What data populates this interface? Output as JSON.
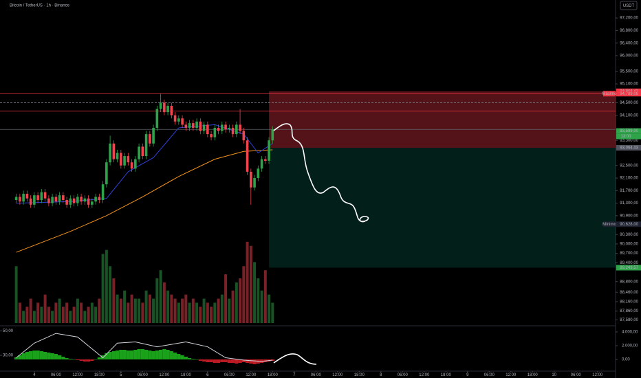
{
  "chart_data": {
    "type": "candlestick",
    "title": "Bitcoin / TetherUS · 1h · Binance",
    "currency": "USDT",
    "colors": {
      "up": "#2fa34a",
      "down": "#f0444f"
    },
    "x": [
      -5,
      -4,
      -3,
      -2,
      -1,
      0,
      1,
      2,
      3,
      4,
      5,
      6,
      7,
      8,
      9,
      10,
      11,
      12,
      13,
      14,
      15,
      16,
      17,
      18,
      19,
      20,
      21,
      22,
      23,
      24,
      25,
      26,
      27,
      28,
      29,
      30,
      31,
      32,
      33,
      34,
      35,
      36,
      37,
      38,
      39,
      40,
      41,
      42,
      43,
      44,
      45,
      46,
      47,
      48,
      49,
      50,
      51,
      52,
      53,
      54,
      55,
      56,
      57,
      58,
      59,
      60,
      61,
      62,
      63,
      64,
      65,
      66
    ],
    "open": [
      91400,
      91500,
      91350,
      91600,
      91450,
      91250,
      91550,
      91400,
      91650,
      91450,
      91300,
      91500,
      91350,
      91550,
      91400,
      91250,
      91450,
      91300,
      91500,
      91350,
      91450,
      91250,
      91350,
      91500,
      91400,
      91900,
      92600,
      93200,
      92700,
      92900,
      92500,
      92800,
      92600,
      92400,
      92700,
      93100,
      92800,
      93500,
      93200,
      93700,
      94300,
      94500,
      94200,
      94400,
      94100,
      93900,
      94000,
      93800,
      93700,
      93850,
      93700,
      93900,
      93600,
      93800,
      93500,
      93400,
      93700,
      93600,
      93800,
      93650,
      93700,
      93500,
      93800,
      93600,
      93300,
      92300,
      91800,
      92100,
      92400,
      92700,
      92650,
      93300
    ],
    "high": [
      91600,
      91600,
      91700,
      91700,
      91550,
      91650,
      91650,
      91750,
      91750,
      91550,
      91600,
      91600,
      91650,
      91650,
      91500,
      91550,
      91550,
      91600,
      91600,
      91550,
      91550,
      91450,
      91600,
      91600,
      92000,
      92700,
      93450,
      93300,
      93000,
      93000,
      92900,
      92900,
      92700,
      92800,
      93200,
      93200,
      93600,
      93600,
      93800,
      94400,
      94800,
      94600,
      94500,
      94500,
      94200,
      94100,
      94100,
      93900,
      93950,
      93950,
      94000,
      94000,
      93900,
      93900,
      93600,
      93800,
      93800,
      93900,
      93900,
      93800,
      93800,
      93900,
      94300,
      93700,
      93400,
      92400,
      92200,
      92500,
      92800,
      92800,
      93400,
      93750
    ],
    "low": [
      91300,
      91250,
      91250,
      91350,
      91150,
      91150,
      91300,
      91300,
      91350,
      91200,
      91200,
      91250,
      91250,
      91300,
      91150,
      91150,
      91200,
      91200,
      91250,
      91250,
      91150,
      91150,
      91250,
      91300,
      91300,
      91800,
      92500,
      92600,
      92600,
      92400,
      92400,
      92500,
      92300,
      92300,
      92600,
      92700,
      92700,
      93100,
      93100,
      93600,
      94200,
      94100,
      94100,
      94000,
      93800,
      93800,
      93700,
      93600,
      93600,
      93600,
      93600,
      93500,
      93500,
      93400,
      93300,
      93300,
      93500,
      93500,
      93550,
      93550,
      93400,
      93400,
      93500,
      93200,
      92200,
      91250,
      91700,
      92000,
      92300,
      92550,
      92550,
      93200
    ],
    "close": [
      91500,
      91350,
      91600,
      91450,
      91250,
      91550,
      91400,
      91650,
      91450,
      91300,
      91500,
      91350,
      91550,
      91400,
      91250,
      91450,
      91300,
      91500,
      91350,
      91450,
      91250,
      91350,
      91500,
      91400,
      91900,
      92600,
      93200,
      92700,
      92900,
      92500,
      92800,
      92600,
      92400,
      92700,
      93100,
      92800,
      93500,
      93200,
      93700,
      94300,
      94500,
      94200,
      94400,
      94100,
      93900,
      94000,
      93800,
      93700,
      93850,
      93700,
      93900,
      93600,
      93800,
      93500,
      93400,
      93700,
      93600,
      93800,
      93650,
      93700,
      93500,
      93800,
      93600,
      93300,
      92300,
      91800,
      92100,
      92400,
      92700,
      92650,
      93300,
      93650
    ],
    "volume": [
      700,
      250,
      150,
      200,
      300,
      150,
      250,
      200,
      350,
      200,
      150,
      250,
      300,
      200,
      250,
      150,
      200,
      300,
      250,
      150,
      200,
      250,
      200,
      300,
      850,
      900,
      700,
      550,
      350,
      300,
      400,
      250,
      350,
      300,
      300,
      250,
      400,
      350,
      300,
      550,
      650,
      500,
      400,
      350,
      300,
      250,
      300,
      350,
      250,
      300,
      250,
      200,
      300,
      250,
      200,
      250,
      300,
      350,
      600,
      300,
      400,
      500,
      550,
      700,
      1000,
      950,
      750,
      550,
      400,
      650,
      350,
      250
    ],
    "volume_lim": [
      0,
      1100
    ],
    "xlim": [
      -9.5,
      161
    ],
    "ylim": [
      87480,
      97773
    ],
    "yticks": [
      {
        "value": 97200,
        "label": "97,200,00"
      },
      {
        "value": 96800,
        "label": "96,800,00"
      },
      {
        "value": 96400,
        "label": "96,400,00"
      },
      {
        "value": 96000,
        "label": "96,000,00"
      },
      {
        "value": 95500,
        "label": "95,500,00"
      },
      {
        "value": 95100,
        "label": "95,100,00"
      },
      {
        "value": 94500,
        "label": "94,500,00"
      },
      {
        "value": 94100,
        "label": "94,100,00"
      },
      {
        "value": 93300,
        "label": "93,300,00"
      },
      {
        "value": 92500,
        "label": "92,500,00"
      },
      {
        "value": 92100,
        "label": "92,100,00"
      },
      {
        "value": 91700,
        "label": "91,700,00"
      },
      {
        "value": 91300,
        "label": "91,300,00"
      },
      {
        "value": 90900,
        "label": "90,900,00"
      },
      {
        "value": 90300,
        "label": "90,300,00"
      },
      {
        "value": 90000,
        "label": "90,000,00"
      },
      {
        "value": 89700,
        "label": "89,700,00"
      },
      {
        "value": 89400,
        "label": "89,400,00"
      },
      {
        "value": 88800,
        "label": "88,800,00"
      },
      {
        "value": 88460,
        "label": "88,460,00"
      },
      {
        "value": 88160,
        "label": "88,160,00"
      },
      {
        "value": 87860,
        "label": "87,860,00"
      },
      {
        "value": 87580,
        "label": "87,580,00"
      }
    ],
    "xticks": [
      {
        "value": 0,
        "label": "4"
      },
      {
        "value": 6,
        "label": "06:00"
      },
      {
        "value": 12,
        "label": "12:00"
      },
      {
        "value": 18,
        "label": "18:00"
      },
      {
        "value": 24,
        "label": "5"
      },
      {
        "value": 30,
        "label": "06:00"
      },
      {
        "value": 36,
        "label": "12:00"
      },
      {
        "value": 42,
        "label": "18:00"
      },
      {
        "value": 48,
        "label": "6"
      },
      {
        "value": 54,
        "label": "06:00"
      },
      {
        "value": 60,
        "label": "12:00"
      },
      {
        "value": 66,
        "label": "18:00"
      },
      {
        "value": 72,
        "label": "7"
      },
      {
        "value": 78,
        "label": "06:00"
      },
      {
        "value": 84,
        "label": "12:00"
      },
      {
        "value": 90,
        "label": "18:00"
      },
      {
        "value": 96,
        "label": "8"
      },
      {
        "value": 102,
        "label": "06:00"
      },
      {
        "value": 108,
        "label": "12:00"
      },
      {
        "value": 114,
        "label": "18:00"
      },
      {
        "value": 120,
        "label": "9"
      },
      {
        "value": 126,
        "label": "06:00"
      },
      {
        "value": 132,
        "label": "12:00"
      },
      {
        "value": 138,
        "label": "18:00"
      },
      {
        "value": 144,
        "label": "10"
      },
      {
        "value": 150,
        "label": "06:00"
      },
      {
        "value": 156,
        "label": "12:00"
      }
    ],
    "moving_averages": [
      {
        "color": "#f7931a",
        "x": [
          -5,
          10,
          20,
          30,
          40,
          50,
          58,
          66
        ],
        "values": [
          89735,
          90400,
          90900,
          91500,
          92150,
          92700,
          92950,
          93000
        ]
      },
      {
        "color": "#2f3fd6",
        "x": [
          -5,
          10,
          20,
          26,
          33,
          40,
          50,
          58,
          62,
          66
        ],
        "values": [
          91300,
          91350,
          91450,
          92300,
          92750,
          93700,
          93800,
          93500,
          92900,
          93200
        ]
      }
    ],
    "levels": [
      {
        "value": 94789.08,
        "color": "#f23645",
        "dashed": false
      },
      {
        "value": 94500,
        "color": "#787b86",
        "dashed": true
      },
      {
        "value": 94230,
        "color": "#f23645",
        "dashed": false
      },
      {
        "value": 93650,
        "color": "#5d606b",
        "dashed": false
      }
    ],
    "position": {
      "entry": 93064.43,
      "stop": 94864.43,
      "target": 89243.57,
      "start": 65
    },
    "price_tags": [
      {
        "value": 94864.43,
        "label": "94,864,43",
        "color": "#f23645"
      },
      {
        "value": 94789.08,
        "label": "94,789,08",
        "color": "#f23645",
        "marker": "Máximo"
      },
      {
        "value": 93599,
        "label": "93,599,00",
        "color": "#2fa34a",
        "time": "13:00"
      },
      {
        "value": 93064.43,
        "label": "93,064,43",
        "color": "#50535e"
      },
      {
        "value": 90628,
        "label": "90,628,00",
        "color": "#1e2230",
        "marker": "Mínimo"
      },
      {
        "value": 89243.57,
        "label": "89,243,57",
        "color": "#2fa34a"
      }
    ],
    "indicator": {
      "ylim": [
        17,
        52
      ],
      "yticks": [
        {
          "value": 50,
          "label": "50,00"
        },
        {
          "value": 30,
          "label": "30,00"
        }
      ],
      "y2lim": [
        -1700,
        4500
      ],
      "y2ticks": [
        {
          "value": 4000,
          "label": "4.000,00"
        },
        {
          "value": 2000,
          "label": "2.000,00"
        },
        {
          "value": 0,
          "label": "0,00"
        }
      ],
      "line": {
        "color": "#d1d4dc",
        "x": [
          -5,
          0,
          6,
          12,
          19,
          23,
          28,
          34,
          42,
          48,
          53,
          58,
          63,
          66
        ],
        "values": [
          28,
          40,
          48,
          45,
          28,
          40,
          41,
          37,
          41,
          37,
          28,
          26,
          25,
          26
        ]
      },
      "histogram": {
        "axis": "y2",
        "up_color": "#1fbf1f",
        "down_color": "#e0202a",
        "values": [
          300,
          600,
          900,
          1100,
          1200,
          1300,
          1300,
          1200,
          1100,
          1000,
          900,
          800,
          600,
          400,
          200,
          100,
          0,
          -100,
          -200,
          -300,
          -300,
          -200,
          0,
          300,
          600,
          900,
          1100,
          1200,
          1300,
          1400,
          1400,
          1300,
          1300,
          1400,
          1500,
          1500,
          1400,
          1300,
          1200,
          1300,
          1400,
          1500,
          1400,
          1200,
          1000,
          800,
          600,
          400,
          200,
          100,
          0,
          -200,
          -300,
          -400,
          -400,
          -500,
          -500,
          -400,
          -400,
          -500,
          -500,
          -600,
          -500,
          -400,
          -500,
          -600,
          -700,
          -600,
          -500,
          -400,
          -300,
          -200
        ]
      }
    }
  }
}
